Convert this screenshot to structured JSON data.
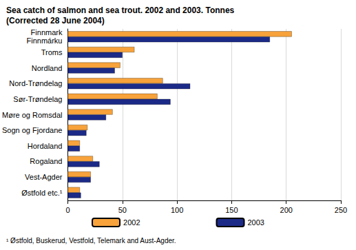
{
  "chart_data": {
    "type": "bar",
    "orientation": "horizontal",
    "title": "Sea catch of salmon and sea trout. 2002 and 2003. Tonnes",
    "subtitle": "(Corrected 28 June 2004)",
    "footnote": "¹ Østfold, Buskerud, Vestfold, Telemark and Aust-Agder.",
    "categories": [
      "Finnmark\nFinnmárku",
      "Troms",
      "Nordland",
      "Nord-Trøndelag",
      "Sør-Trøndelag",
      "Møre og Romsdal",
      "Sogn og Fjordane",
      "Hordaland",
      "Rogaland",
      "Vest-Agder",
      "Østfold etc.¹"
    ],
    "series": [
      {
        "name": "2002",
        "color": "#f7a23b",
        "values": [
          205,
          61,
          48,
          87,
          82,
          41,
          18,
          11,
          23,
          21,
          11
        ]
      },
      {
        "name": "2003",
        "color": "#1c2a87",
        "values": [
          185,
          50,
          43,
          112,
          94,
          35,
          17,
          11,
          29,
          21,
          12
        ]
      }
    ],
    "xlim": [
      0,
      250
    ],
    "xticks": [
      0,
      50,
      100,
      150,
      200,
      250
    ],
    "grid": true,
    "legend": "bottom"
  }
}
